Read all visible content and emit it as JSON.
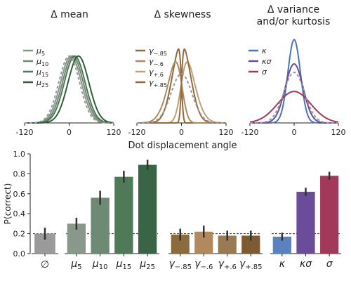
{
  "chart_data": [
    {
      "type": "line",
      "title": "Δ mean",
      "xlim": [
        -120,
        120
      ],
      "xticks": [
        "-120",
        "0",
        "120"
      ],
      "reference": "dashed gray baseline distribution",
      "legend_position": "left",
      "series": [
        {
          "name": "μ5",
          "sub": "5",
          "color": "#8a978b",
          "mean": 5,
          "sd": 28
        },
        {
          "name": "μ10",
          "sub": "10",
          "color": "#6f8a74",
          "mean": 10,
          "sd": 28
        },
        {
          "name": "μ15",
          "sub": "15",
          "color": "#4f7a58",
          "mean": 15,
          "sd": 28
        },
        {
          "name": "μ25",
          "sub": "25",
          "color": "#2e5e3b",
          "mean": 25,
          "sd": 28
        }
      ]
    },
    {
      "type": "line",
      "title": "Δ skewness",
      "xlim": [
        -120,
        120
      ],
      "xticks": [
        "-120",
        "0",
        "120"
      ],
      "xlabel": "Dot displacement angle",
      "reference": "dashed gray baseline distribution",
      "legend_position": "left",
      "series": [
        {
          "name": "γ−.85",
          "sub": "−.85",
          "color": "#8b6a3e",
          "skew": -0.85
        },
        {
          "name": "γ−.6",
          "sub": "−.6",
          "color": "#b08a5e",
          "skew": -0.6
        },
        {
          "name": "γ+.6",
          "sub": "+.6",
          "color": "#c0a07a",
          "skew": 0.6
        },
        {
          "name": "γ+.85",
          "sub": "+.85",
          "color": "#9a6b3a",
          "skew": 0.85
        }
      ]
    },
    {
      "type": "line",
      "title": "Δ variance",
      "subtitle": "and/or kurtosis",
      "xlim": [
        -120,
        120
      ],
      "xticks": [
        "-120",
        "0",
        "120"
      ],
      "reference": "dashed gray baseline distribution",
      "legend_position": "left",
      "series": [
        {
          "name": "κ",
          "color": "#4a74b4",
          "sd": 17
        },
        {
          "name": "κσ",
          "color": "#6b4c9a",
          "sd": 24
        },
        {
          "name": "σ",
          "color": "#a3395a",
          "sd": 45
        }
      ]
    },
    {
      "type": "bar",
      "ylabel": "P(correct)",
      "ylim": [
        0,
        1.0
      ],
      "yticks": [
        "0.0",
        "0.2",
        "0.4",
        "0.6",
        "0.8",
        "1.0"
      ],
      "chance_line": 0.2,
      "groups": [
        {
          "bars": [
            {
              "label": "∅",
              "value": 0.2,
              "err": 0.06,
              "color": "#9a9a9a"
            }
          ]
        },
        {
          "bars": [
            {
              "label": "μ",
              "sub": "5",
              "value": 0.3,
              "err": 0.06,
              "color": "#8a978b"
            },
            {
              "label": "μ",
              "sub": "10",
              "value": 0.56,
              "err": 0.07,
              "color": "#6f8a74"
            },
            {
              "label": "μ",
              "sub": "15",
              "value": 0.77,
              "err": 0.06,
              "color": "#4f7a58"
            },
            {
              "label": "μ",
              "sub": "25",
              "value": 0.89,
              "err": 0.05,
              "color": "#3a6446"
            }
          ]
        },
        {
          "bars": [
            {
              "label": "γ",
              "sub": "−.85",
              "value": 0.19,
              "err": 0.06,
              "color": "#8b6a3e"
            },
            {
              "label": "γ",
              "sub": "−.6",
              "value": 0.22,
              "err": 0.06,
              "color": "#b08a5e"
            },
            {
              "label": "γ",
              "sub": "+.6",
              "value": 0.18,
              "err": 0.05,
              "color": "#9a7a52"
            },
            {
              "label": "γ",
              "sub": "+.85",
              "value": 0.18,
              "err": 0.05,
              "color": "#7d5a32"
            }
          ]
        },
        {
          "bars": [
            {
              "label": "κ",
              "value": 0.17,
              "err": 0.04,
              "color": "#5a82bf"
            },
            {
              "label": "κσ",
              "value": 0.62,
              "err": 0.04,
              "color": "#6b4c9a"
            },
            {
              "label": "σ",
              "value": 0.78,
              "err": 0.04,
              "color": "#a3395a"
            }
          ]
        }
      ]
    }
  ]
}
